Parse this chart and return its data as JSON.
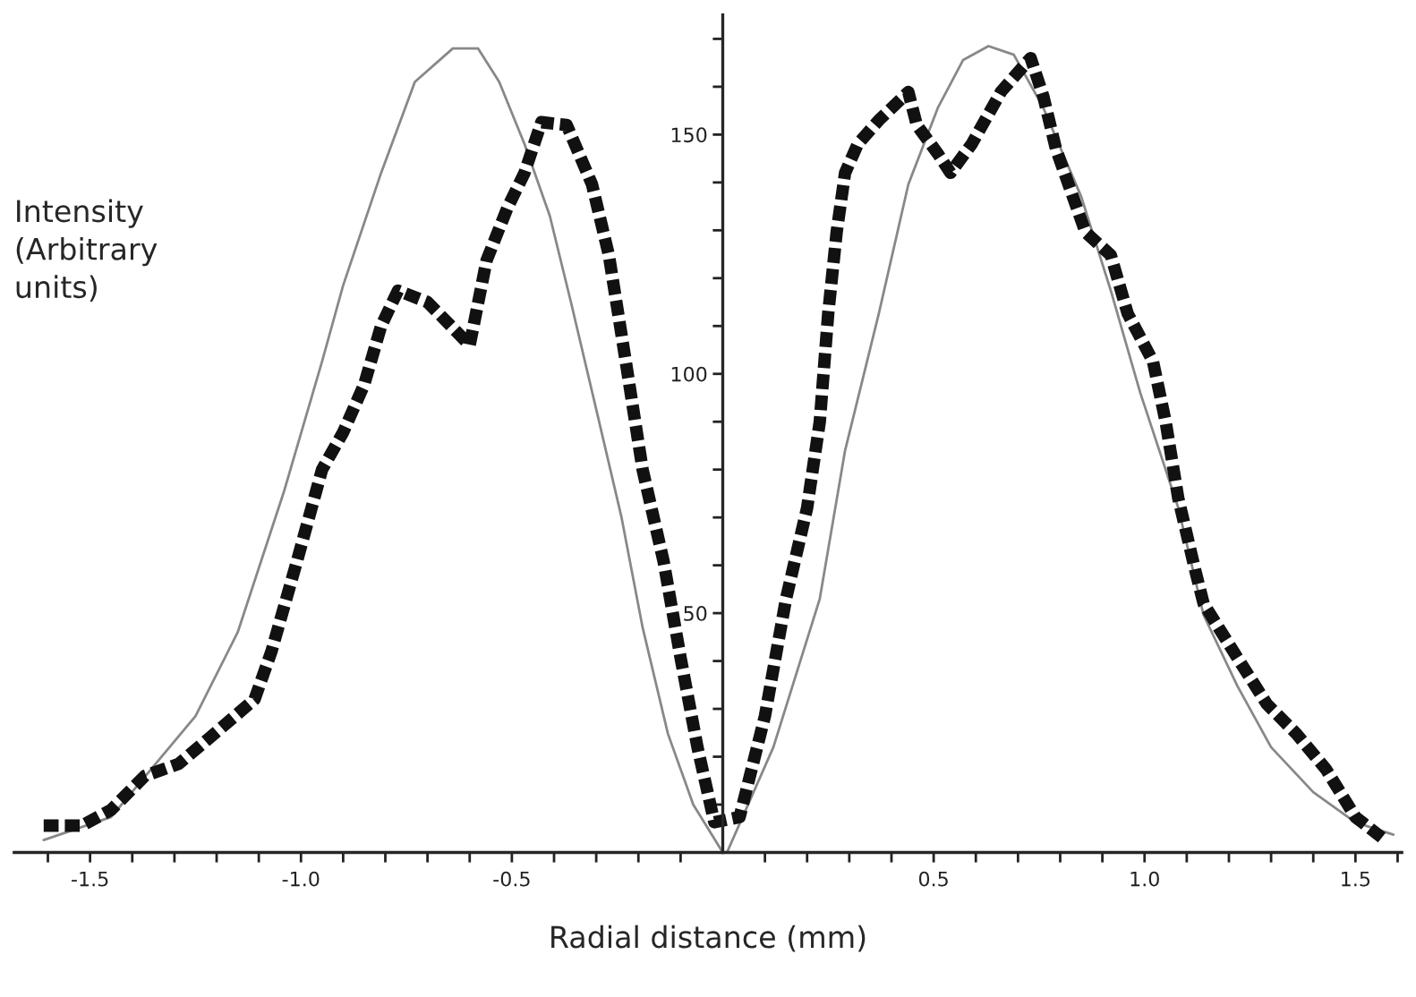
{
  "chart_data": {
    "type": "line",
    "xlabel": "Radial distance (mm)",
    "ylabel": "Intensity\n(Arbitrary\nunits)",
    "xlim": [
      -1.68,
      1.61
    ],
    "ylim": [
      0,
      175
    ],
    "xticks": [
      {
        "value": -1.6,
        "label": null
      },
      -1.5,
      {
        "value": -1.4,
        "label": null
      },
      {
        "value": -1.3,
        "label": null
      },
      {
        "value": -1.2,
        "label": null
      },
      {
        "value": -1.1,
        "label": null
      },
      {
        "value": -1.0,
        "label": "-1.0"
      },
      {
        "value": -0.9,
        "label": null
      },
      {
        "value": -0.8,
        "label": null
      },
      {
        "value": -0.7,
        "label": null
      },
      {
        "value": -0.6,
        "label": null
      },
      -0.5,
      {
        "value": -0.4,
        "label": null
      },
      {
        "value": -0.3,
        "label": null
      },
      {
        "value": -0.2,
        "label": null
      },
      {
        "value": -0.1,
        "label": null
      },
      {
        "value": 0.1,
        "label": null
      },
      {
        "value": 0.2,
        "label": null
      },
      {
        "value": 0.3,
        "label": null
      },
      {
        "value": 0.4,
        "label": null
      },
      0.5,
      {
        "value": 0.6,
        "label": null
      },
      {
        "value": 0.7,
        "label": null
      },
      {
        "value": 0.8,
        "label": null
      },
      {
        "value": 0.9,
        "label": null
      },
      {
        "value": 1.0,
        "label": "1.0"
      },
      {
        "value": 1.1,
        "label": null
      },
      {
        "value": 1.2,
        "label": null
      },
      {
        "value": 1.3,
        "label": null
      },
      {
        "value": 1.4,
        "label": null
      },
      1.5,
      {
        "value": 1.6,
        "label": null
      }
    ],
    "yticks": [
      {
        "value": 10,
        "label": null
      },
      {
        "value": 20,
        "label": null
      },
      {
        "value": 30,
        "label": null
      },
      {
        "value": 40,
        "label": null
      },
      50,
      {
        "value": 60,
        "label": null
      },
      {
        "value": 70,
        "label": null
      },
      {
        "value": 80,
        "label": null
      },
      {
        "value": 90,
        "label": null
      },
      100,
      {
        "value": 110,
        "label": null
      },
      {
        "value": 120,
        "label": null
      },
      {
        "value": 130,
        "label": null
      },
      {
        "value": 140,
        "label": null
      },
      150,
      {
        "value": 160,
        "label": null
      },
      {
        "value": 170,
        "label": null
      }
    ],
    "grid": false,
    "series": [
      {
        "color": "#888888",
        "line_style": "solid",
        "x": [
          -1.61,
          -1.45,
          -1.25,
          -1.15,
          -1.04,
          -0.95,
          -0.9,
          -0.81,
          -0.73,
          -0.64,
          -0.58,
          -0.53,
          -0.47,
          -0.41,
          -0.36,
          -0.3,
          -0.24,
          -0.19,
          -0.13,
          -0.07,
          0.0,
          0.01,
          0.12,
          0.23,
          0.29,
          0.37,
          0.44,
          0.51,
          0.57,
          0.63,
          0.69,
          0.76,
          0.85,
          0.92,
          0.99,
          1.08,
          1.14,
          1.22,
          1.3,
          1.4,
          1.5,
          1.59
        ],
        "values": [
          2.6,
          7.4,
          28.5,
          46,
          75.5,
          102.6,
          118.5,
          142,
          161,
          168,
          168,
          161,
          148,
          133,
          115,
          92.6,
          70,
          47,
          24.8,
          10,
          0,
          0,
          22,
          53,
          84,
          112.6,
          139.6,
          155.6,
          165.6,
          168.5,
          166.7,
          155.6,
          137,
          117.4,
          96,
          72,
          49.6,
          34.8,
          22,
          12.6,
          6.3,
          3.7
        ]
      },
      {
        "color": "#111111",
        "line_style": "dotted",
        "x": [
          -1.61,
          -1.52,
          -1.45,
          -1.37,
          -1.29,
          -1.22,
          -1.11,
          -1.07,
          -1.01,
          -0.95,
          -0.9,
          -0.85,
          -0.81,
          -0.77,
          -0.7,
          -0.6,
          -0.56,
          -0.51,
          -0.47,
          -0.43,
          -0.37,
          -0.31,
          -0.27,
          -0.23,
          -0.19,
          -0.14,
          -0.1,
          -0.06,
          -0.02,
          0.04,
          0.1,
          0.15,
          0.2,
          0.23,
          0.25,
          0.27,
          0.29,
          0.32,
          0.37,
          0.44,
          0.46,
          0.51,
          0.54,
          0.59,
          0.66,
          0.73,
          0.76,
          0.79,
          0.86,
          0.92,
          0.96,
          1.02,
          1.05,
          1.08,
          1.12,
          1.14,
          1.22,
          1.29,
          1.36,
          1.43,
          1.5,
          1.57
        ],
        "values": [
          5.6,
          5.6,
          8.9,
          16,
          18.5,
          23.7,
          32,
          42,
          60.7,
          80,
          87.8,
          97.8,
          110,
          117.4,
          115,
          106,
          123.7,
          134.8,
          142,
          152.6,
          152,
          139.6,
          124.8,
          102.6,
          80,
          60.7,
          40.7,
          22,
          6.3,
          7.4,
          28.5,
          53,
          72,
          90,
          112.6,
          129.6,
          142,
          148,
          153,
          158.9,
          152,
          146,
          142,
          148,
          159,
          166,
          158,
          147,
          129.6,
          124.8,
          112.6,
          102.6,
          90,
          74,
          59,
          52,
          40.7,
          31,
          24.8,
          17.4,
          7.4,
          2.6
        ]
      }
    ]
  }
}
